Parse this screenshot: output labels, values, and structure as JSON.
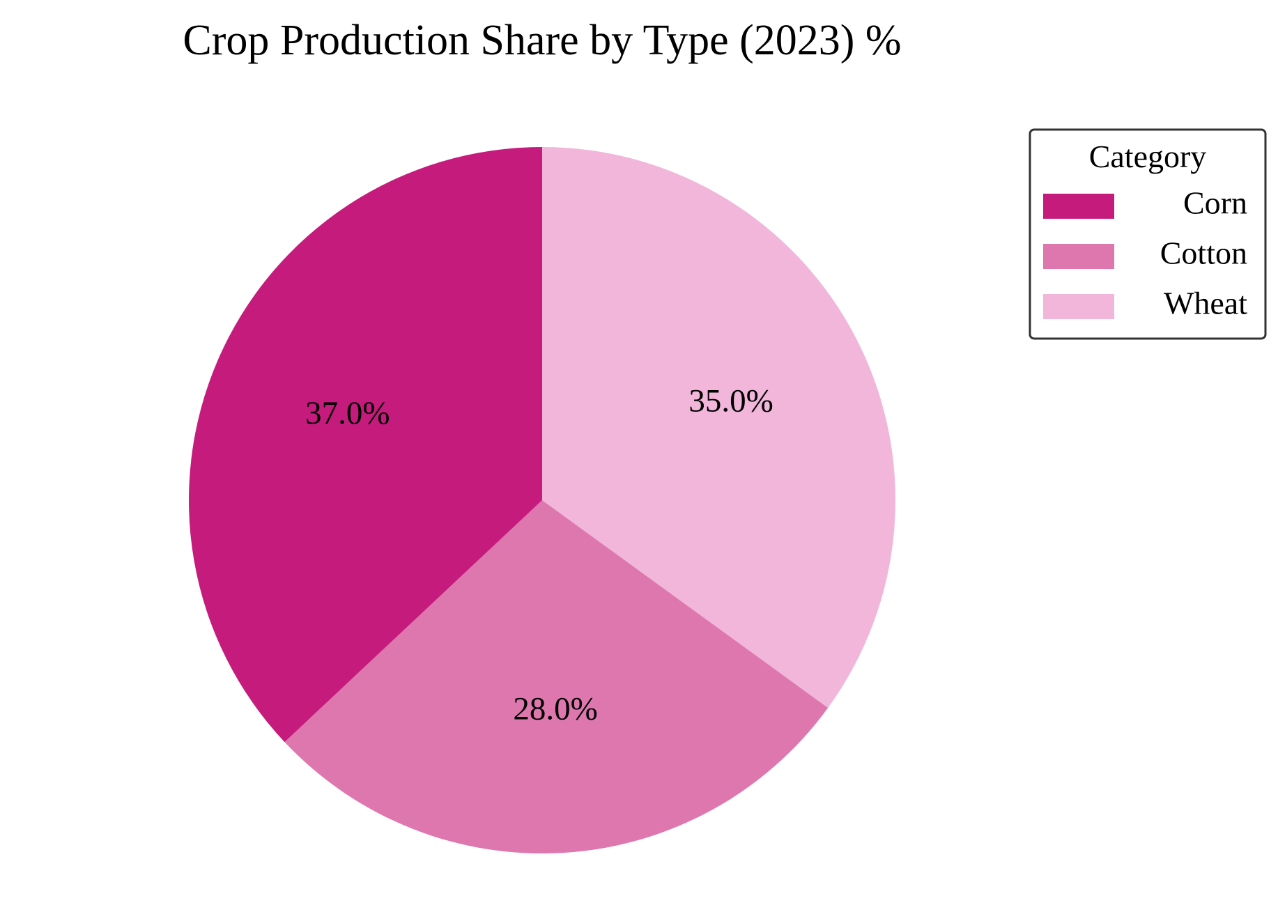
{
  "chart_data": {
    "type": "pie",
    "title": "Crop Production Share by Type (2023) %",
    "start_angle_deg": 90,
    "direction": "clockwise",
    "slices": [
      {
        "name": "Corn",
        "value": 37.0,
        "label": "37.0%",
        "color": "#c51b7d"
      },
      {
        "name": "Cotton",
        "value": 28.0,
        "label": "28.0%",
        "color": "#de77ae"
      },
      {
        "name": "Wheat",
        "value": 35.0,
        "label": "35.0%",
        "color": "#f1b6da"
      }
    ],
    "slice_order": [
      "Wheat",
      "Cotton",
      "Corn"
    ],
    "legend": {
      "title": "Category",
      "placement": "right",
      "entries": [
        "Corn",
        "Cotton",
        "Wheat"
      ]
    }
  }
}
